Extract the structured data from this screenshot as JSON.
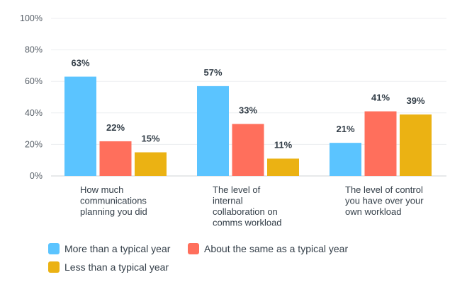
{
  "chart_data": {
    "type": "bar",
    "categories": [
      [
        "How much",
        "communications",
        "planning you did"
      ],
      [
        "The level of",
        "internal",
        "collaboration on",
        "comms workload"
      ],
      [
        "The level of control",
        "you have over your",
        "own workload"
      ]
    ],
    "series": [
      {
        "name": "More than a typical year",
        "color": "#5bc4ff",
        "values": [
          63,
          57,
          21
        ]
      },
      {
        "name": "About the same as a typical year",
        "color": "#ff6f5c",
        "values": [
          22,
          33,
          41
        ]
      },
      {
        "name": "Less than a typical year",
        "color": "#ebb213",
        "values": [
          15,
          11,
          39
        ]
      }
    ],
    "data_labels": [
      [
        "63%",
        "22%",
        "15%"
      ],
      [
        "57%",
        "33%",
        "11%"
      ],
      [
        "21%",
        "41%",
        "39%"
      ]
    ],
    "y_ticks": [
      "0%",
      "20%",
      "40%",
      "60%",
      "80%",
      "100%"
    ],
    "y_tick_values": [
      0,
      20,
      40,
      60,
      80,
      100
    ],
    "ylim": [
      0,
      100
    ],
    "grid": true,
    "legend_position": "bottom",
    "title": "",
    "xlabel": "",
    "ylabel": ""
  }
}
